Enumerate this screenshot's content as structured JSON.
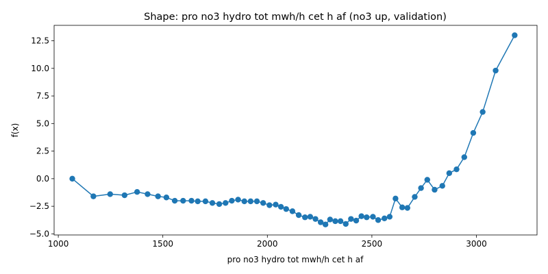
{
  "chart_data": {
    "type": "line",
    "title": "Shape: pro no3 hydro tot mwh/h cet h af (no3 up, validation)",
    "xlabel": "pro no3 hydro tot mwh/h cet h af",
    "ylabel": "f(x)",
    "xlim": [
      980,
      3290
    ],
    "ylim": [
      -5.1,
      13.9
    ],
    "xticks": [
      1000,
      1500,
      2000,
      2500,
      3000
    ],
    "yticks": [
      -5.0,
      -2.5,
      0.0,
      2.5,
      5.0,
      7.5,
      10.0,
      12.5
    ],
    "ytick_labels": [
      "−5.0",
      "−2.5",
      "0.0",
      "2.5",
      "5.0",
      "7.5",
      "10.0",
      "12.5"
    ],
    "grid": false,
    "legend": "none",
    "marker": "circle",
    "color": "#1f77b4",
    "series": [
      {
        "x": [
          1067,
          1168,
          1248,
          1317,
          1377,
          1427,
          1477,
          1517,
          1557,
          1597,
          1637,
          1667,
          1704,
          1737,
          1770,
          1800,
          1830,
          1860,
          1890,
          1920,
          1950,
          1980,
          2010,
          2040,
          2065,
          2090,
          2120,
          2150,
          2180,
          2205,
          2230,
          2255,
          2278,
          2300,
          2325,
          2350,
          2375,
          2400,
          2425,
          2450,
          2475,
          2505,
          2530,
          2560,
          2585,
          2613,
          2645,
          2670,
          2705,
          2735,
          2765,
          2800,
          2837,
          2870,
          2905,
          2942,
          2985,
          3030,
          3092,
          3183
        ],
        "y": [
          0.0,
          -1.6,
          -1.4,
          -1.5,
          -1.2,
          -1.4,
          -1.6,
          -1.7,
          -2.0,
          -2.0,
          -2.0,
          -2.05,
          -2.05,
          -2.2,
          -2.3,
          -2.2,
          -2.0,
          -1.9,
          -2.05,
          -2.05,
          -2.05,
          -2.2,
          -2.4,
          -2.35,
          -2.55,
          -2.75,
          -2.95,
          -3.3,
          -3.5,
          -3.45,
          -3.65,
          -3.95,
          -4.15,
          -3.7,
          -3.85,
          -3.85,
          -4.1,
          -3.65,
          -3.8,
          -3.4,
          -3.5,
          -3.45,
          -3.75,
          -3.6,
          -3.45,
          -1.8,
          -2.6,
          -2.65,
          -1.65,
          -0.85,
          -0.1,
          -1.0,
          -0.65,
          0.5,
          0.85,
          1.95,
          4.15,
          6.05,
          9.8,
          13.0
        ]
      }
    ]
  }
}
